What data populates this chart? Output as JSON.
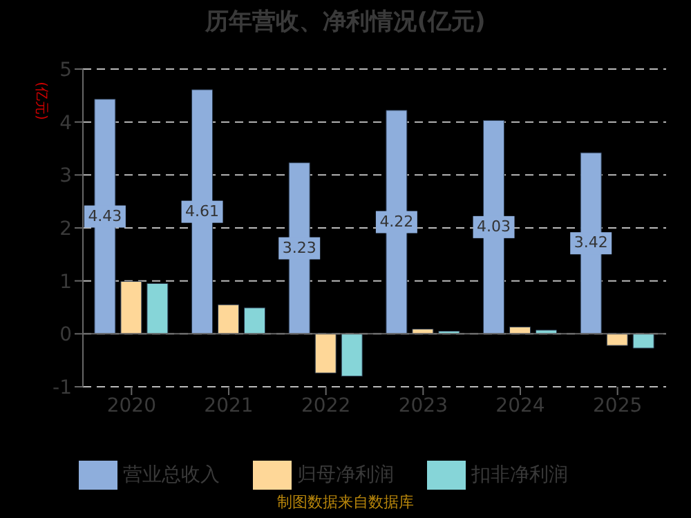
{
  "chart_data": {
    "type": "bar",
    "title": "历年营收、净利情况(亿元)",
    "ylabel": "(亿元)",
    "categories": [
      "2020",
      "2021",
      "2022",
      "2023",
      "2024",
      "2025"
    ],
    "series": [
      {
        "name": "营业总收入",
        "color": "#8eaedc",
        "values": [
          4.43,
          4.61,
          3.23,
          4.22,
          4.03,
          3.42
        ],
        "value_labels": [
          "4.43",
          "4.61",
          "3.23",
          "4.22",
          "4.03",
          "3.42"
        ]
      },
      {
        "name": "归母净利润",
        "color": "#fed798",
        "values": [
          0.99,
          0.55,
          -0.74,
          0.09,
          0.13,
          -0.22
        ]
      },
      {
        "name": "扣非净利润",
        "color": "#86d5d8",
        "values": [
          0.95,
          0.49,
          -0.8,
          0.05,
          0.07,
          -0.27
        ]
      }
    ],
    "ylim": [
      -1,
      5
    ],
    "yticks": [
      -1,
      0,
      1,
      2,
      3,
      4,
      5
    ],
    "grid": "y",
    "legend": "bottom",
    "annotations": [
      "制图数据来自数据库"
    ]
  }
}
